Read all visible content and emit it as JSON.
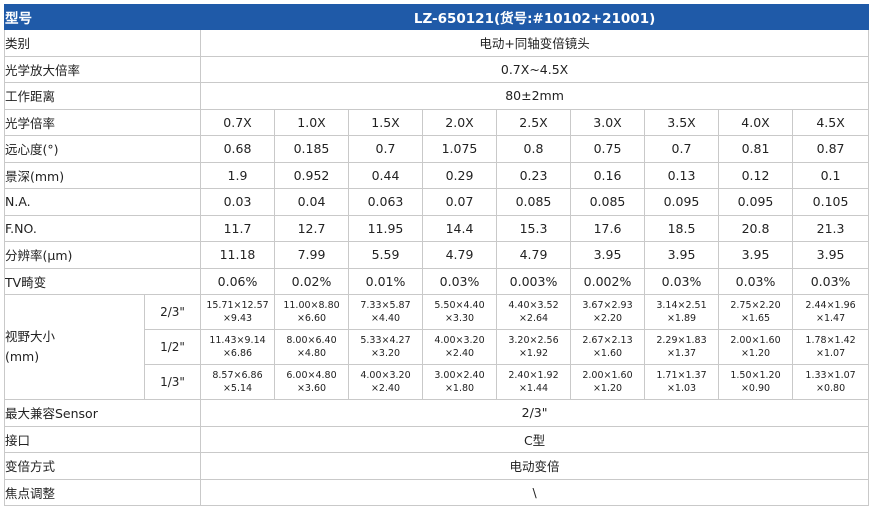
{
  "header": {
    "label": "型号",
    "model": "LZ-650121(货号:#10102+21001)"
  },
  "rows_top": [
    {
      "label": "类别",
      "value": "电动+同轴变倍镜头"
    },
    {
      "label": "光学放大倍率",
      "value": "0.7X~4.5X"
    },
    {
      "label": "工作距离",
      "value": "80±2mm"
    }
  ],
  "rows_cols": [
    {
      "label": "光学倍率",
      "values": [
        "0.7X",
        "1.0X",
        "1.5X",
        "2.0X",
        "2.5X",
        "3.0X",
        "3.5X",
        "4.0X",
        "4.5X"
      ]
    },
    {
      "label": "远心度(°)",
      "values": [
        "0.68",
        "0.185",
        "0.7",
        "1.075",
        "0.8",
        "0.75",
        "0.7",
        "0.81",
        "0.87"
      ]
    },
    {
      "label": "景深(mm)",
      "values": [
        "1.9",
        "0.952",
        "0.44",
        "0.29",
        "0.23",
        "0.16",
        "0.13",
        "0.12",
        "0.1"
      ]
    },
    {
      "label": "N.A.",
      "values": [
        "0.03",
        "0.04",
        "0.063",
        "0.07",
        "0.085",
        "0.085",
        "0.095",
        "0.095",
        "0.105"
      ]
    },
    {
      "label": "F.NO.",
      "values": [
        "11.7",
        "12.7",
        "11.95",
        "14.4",
        "15.3",
        "17.6",
        "18.5",
        "20.8",
        "21.3"
      ]
    },
    {
      "label": "分辨率(μm)",
      "values": [
        "11.18",
        "7.99",
        "5.59",
        "4.79",
        "4.79",
        "3.95",
        "3.95",
        "3.95",
        "3.95"
      ]
    },
    {
      "label": "TV畸变",
      "values": [
        "0.06%",
        "0.02%",
        "0.01%",
        "0.03%",
        "0.003%",
        "0.002%",
        "0.03%",
        "0.03%",
        "0.03%"
      ]
    }
  ],
  "fov": {
    "label_line1": "视野大小",
    "label_line2": "(mm)",
    "rows": [
      {
        "size": "2/3\"",
        "cells": [
          [
            "15.71×12.57",
            "×9.43"
          ],
          [
            "11.00×8.80",
            "×6.60"
          ],
          [
            "7.33×5.87",
            "×4.40"
          ],
          [
            "5.50×4.40",
            "×3.30"
          ],
          [
            "4.40×3.52",
            "×2.64"
          ],
          [
            "3.67×2.93",
            "×2.20"
          ],
          [
            "3.14×2.51",
            "×1.89"
          ],
          [
            "2.75×2.20",
            "×1.65"
          ],
          [
            "2.44×1.96",
            "×1.47"
          ]
        ]
      },
      {
        "size": "1/2\"",
        "cells": [
          [
            "11.43×9.14",
            "×6.86"
          ],
          [
            "8.00×6.40",
            "×4.80"
          ],
          [
            "5.33×4.27",
            "×3.20"
          ],
          [
            "4.00×3.20",
            "×2.40"
          ],
          [
            "3.20×2.56",
            "×1.92"
          ],
          [
            "2.67×2.13",
            "×1.60"
          ],
          [
            "2.29×1.83",
            "×1.37"
          ],
          [
            "2.00×1.60",
            "×1.20"
          ],
          [
            "1.78×1.42",
            "×1.07"
          ]
        ]
      },
      {
        "size": "1/3\"",
        "cells": [
          [
            "8.57×6.86",
            "×5.14"
          ],
          [
            "6.00×4.80",
            "×3.60"
          ],
          [
            "4.00×3.20",
            "×2.40"
          ],
          [
            "3.00×2.40",
            "×1.80"
          ],
          [
            "2.40×1.92",
            "×1.44"
          ],
          [
            "2.00×1.60",
            "×1.20"
          ],
          [
            "1.71×1.37",
            "×1.03"
          ],
          [
            "1.50×1.20",
            "×0.90"
          ],
          [
            "1.33×1.07",
            "×0.80"
          ]
        ]
      }
    ]
  },
  "rows_bottom": [
    {
      "label": "最大兼容Sensor",
      "value": "2/3\""
    },
    {
      "label": "接口",
      "value": "C型"
    },
    {
      "label": "变倍方式",
      "value": "电动变倍"
    },
    {
      "label": "焦点调整",
      "value": "\\"
    }
  ],
  "colors": {
    "header_bg": "#1f5aa8",
    "border": "#c9c9c9"
  }
}
